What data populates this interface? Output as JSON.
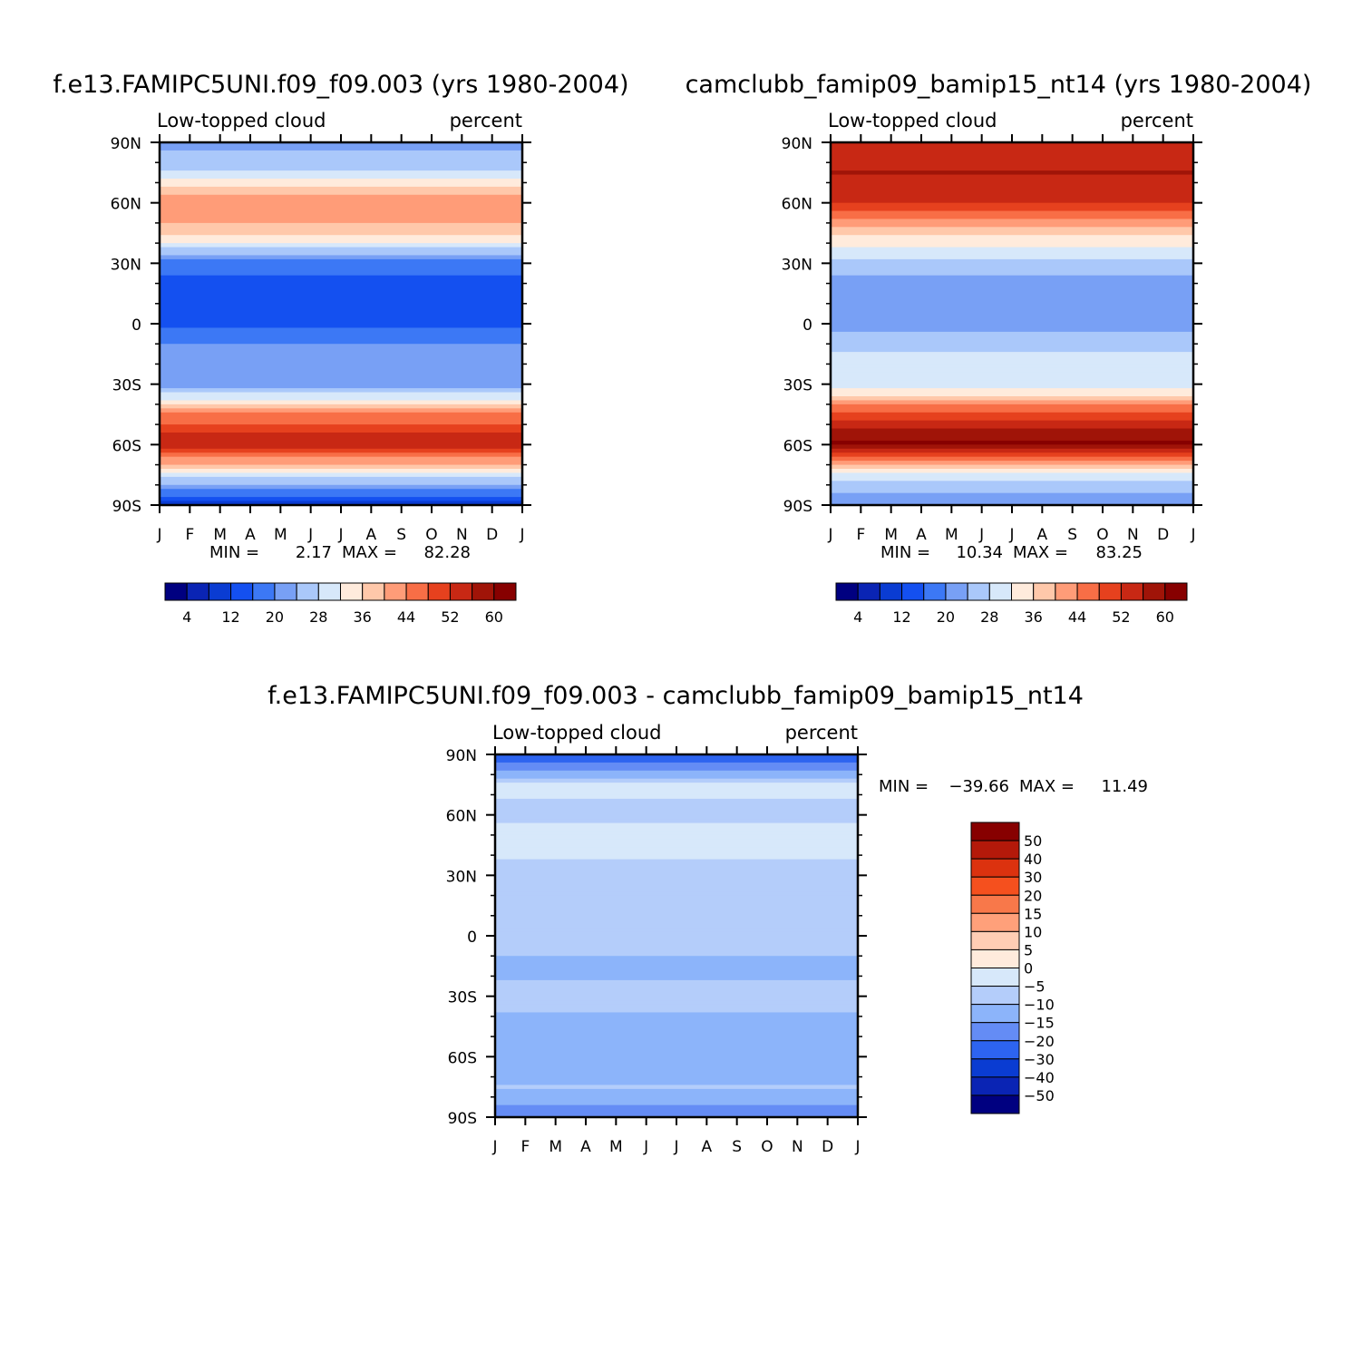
{
  "chart_data": [
    {
      "type": "heatmap",
      "title": "f.e13.FAMIPC5UNI.f09_f09.003 (yrs 1980-2004)",
      "subtitle_left": "Low-topped cloud",
      "subtitle_right": "percent",
      "x_tick_labels": [
        "J",
        "F",
        "M",
        "A",
        "M",
        "J",
        "J",
        "A",
        "S",
        "O",
        "N",
        "D",
        "J"
      ],
      "y_tick_labels": [
        "90N",
        "60N",
        "30N",
        "0",
        "30S",
        "60S",
        "90S"
      ],
      "y_values": [
        90,
        60,
        30,
        0,
        -30,
        -60,
        -90
      ],
      "ylim": [
        -90,
        90
      ],
      "stats": {
        "min_label": "MIN =",
        "min": "2.17",
        "max_label": "MAX =",
        "max": "82.28"
      },
      "colorbar": {
        "orientation": "horizontal",
        "levels": [
          4,
          8,
          12,
          16,
          20,
          24,
          28,
          32,
          36,
          40,
          44,
          48,
          52,
          56,
          60
        ],
        "labels": [
          "4",
          "12",
          "20",
          "28",
          "36",
          "44",
          "52",
          "60"
        ],
        "colors": [
          "#000080",
          "#0a24b4",
          "#0a3cd2",
          "#1450f0",
          "#3c78f5",
          "#78a0f5",
          "#aac8fa",
          "#d7e8fa",
          "#ffebdc",
          "#ffc8aa",
          "#ff9c78",
          "#f86e46",
          "#e6411e",
          "#c82814",
          "#a01408",
          "#870000"
        ]
      },
      "field_profile": {
        "lat": [
          90,
          75,
          60,
          45,
          30,
          15,
          0,
          -15,
          -30,
          -45,
          -60,
          -75,
          -90
        ],
        "values": [
          22,
          28,
          44,
          38,
          18,
          12,
          15,
          22,
          20,
          44,
          56,
          30,
          10
        ]
      }
    },
    {
      "type": "heatmap",
      "title": "camclubb_famip09_bamip15_nt14 (yrs 1980-2004)",
      "subtitle_left": "Low-topped cloud",
      "subtitle_right": "percent",
      "x_tick_labels": [
        "J",
        "F",
        "M",
        "A",
        "M",
        "J",
        "J",
        "A",
        "S",
        "O",
        "N",
        "D",
        "J"
      ],
      "y_tick_labels": [
        "90N",
        "60N",
        "30N",
        "0",
        "30S",
        "60S",
        "90S"
      ],
      "y_values": [
        90,
        60,
        30,
        0,
        -30,
        -60,
        -90
      ],
      "ylim": [
        -90,
        90
      ],
      "stats": {
        "min_label": "MIN =",
        "min": "10.34",
        "max_label": "MAX =",
        "max": "83.25"
      },
      "colorbar": {
        "orientation": "horizontal",
        "levels": [
          4,
          8,
          12,
          16,
          20,
          24,
          28,
          32,
          36,
          40,
          44,
          48,
          52,
          56,
          60
        ],
        "labels": [
          "4",
          "12",
          "20",
          "28",
          "36",
          "44",
          "52",
          "60"
        ],
        "colors": [
          "#000080",
          "#0a24b4",
          "#0a3cd2",
          "#1450f0",
          "#3c78f5",
          "#78a0f5",
          "#aac8fa",
          "#d7e8fa",
          "#ffebdc",
          "#ffc8aa",
          "#ff9c78",
          "#f86e46",
          "#e6411e",
          "#c82814",
          "#a01408",
          "#870000"
        ]
      },
      "field_profile": {
        "lat": [
          90,
          75,
          60,
          45,
          30,
          15,
          0,
          -15,
          -30,
          -45,
          -60,
          -75,
          -90
        ],
        "values": [
          52,
          56,
          52,
          36,
          26,
          20,
          22,
          28,
          28,
          50,
          62,
          30,
          20
        ]
      }
    },
    {
      "type": "heatmap",
      "title": "f.e13.FAMIPC5UNI.f09_f09.003 - camclubb_famip09_bamip15_nt14",
      "subtitle_left": "Low-topped cloud",
      "subtitle_right": "percent",
      "x_tick_labels": [
        "J",
        "F",
        "M",
        "A",
        "M",
        "J",
        "J",
        "A",
        "S",
        "O",
        "N",
        "D",
        "J"
      ],
      "y_tick_labels": [
        "90N",
        "60N",
        "30N",
        "0",
        "30S",
        "60S",
        "90S"
      ],
      "y_values": [
        90,
        60,
        30,
        0,
        -30,
        -60,
        -90
      ],
      "ylim": [
        -90,
        90
      ],
      "stats": {
        "min_label": "MIN =",
        "min": "−39.66",
        "max_label": "MAX =",
        "max": "11.49"
      },
      "colorbar": {
        "orientation": "vertical",
        "levels": [
          50,
          40,
          30,
          20,
          15,
          10,
          5,
          0,
          -5,
          -10,
          -15,
          -20,
          -30,
          -40,
          -50
        ],
        "labels": [
          "50",
          "40",
          "30",
          "20",
          "15",
          "10",
          "5",
          "0",
          "−5",
          "−10",
          "−15",
          "−20",
          "−30",
          "−40",
          "−50"
        ],
        "colors": [
          "#870000",
          "#b4190a",
          "#dc320f",
          "#f5501e",
          "#f8784a",
          "#ffa07a",
          "#ffcdb4",
          "#ffebdc",
          "#d7e8fa",
          "#b4cdfa",
          "#8cb4fa",
          "#648cf5",
          "#2d64f0",
          "#0a3cd2",
          "#0a24b4",
          "#000080"
        ]
      },
      "field_profile": {
        "lat": [
          90,
          75,
          60,
          45,
          30,
          15,
          0,
          -15,
          -30,
          -45,
          -60,
          -75,
          -90
        ],
        "values": [
          -28,
          -4,
          -6,
          -2,
          -8,
          -9,
          -6,
          -12,
          -8,
          -12,
          -12,
          -10,
          -18
        ]
      }
    }
  ]
}
